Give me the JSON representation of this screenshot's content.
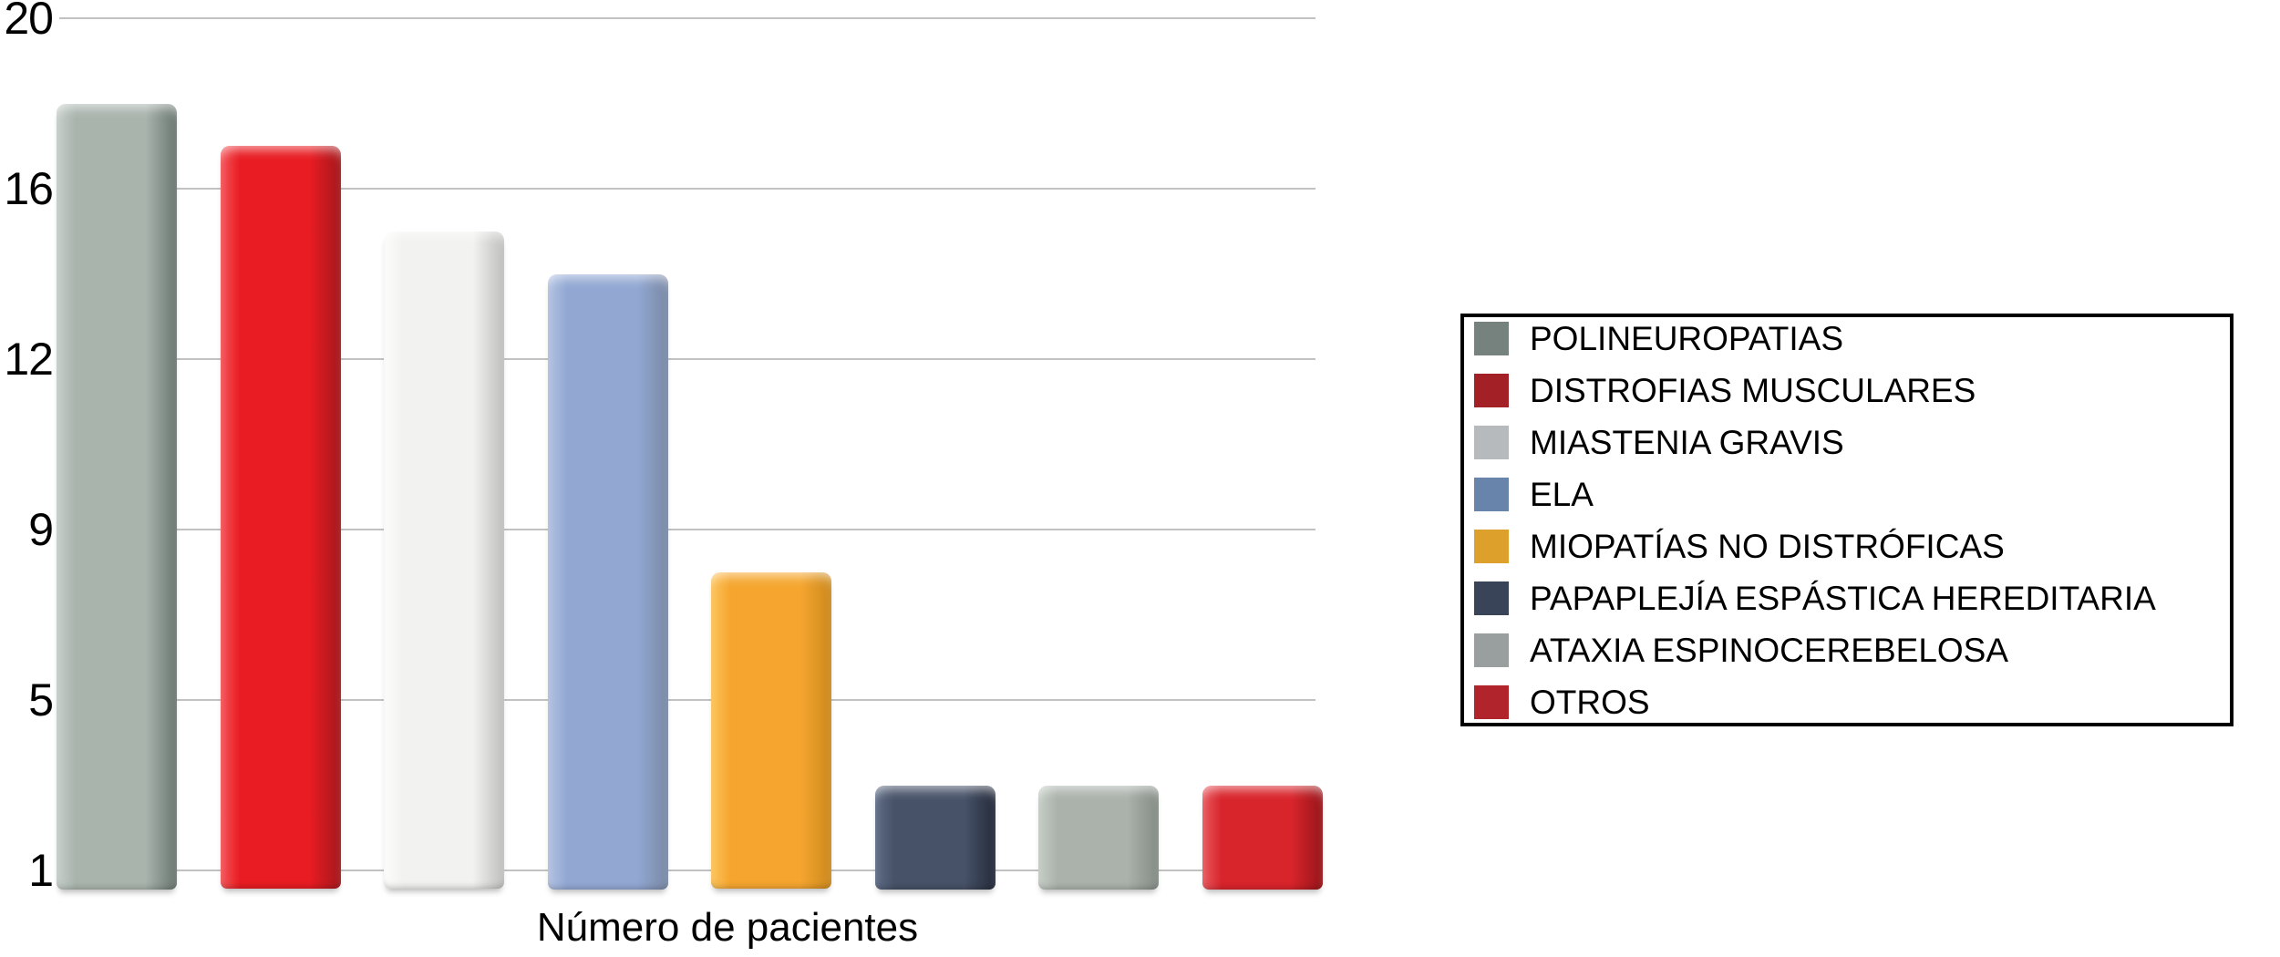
{
  "chart_data": {
    "type": "bar",
    "title": "",
    "xlabel": "Número de pacientes",
    "ylabel": "",
    "categories": [
      "POLINEUROPATIAS",
      "DISTROFIAS MUSCULARES",
      "MIASTENIA GRAVIS",
      "ELA",
      "MIOPATÍAS NO DISTRÓFICAS",
      "PAPAPLEJÍA ESPÁSTICA HEREDITARIA",
      "ATAXIA ESPINOCEREBELOSA",
      "OTROS"
    ],
    "values": [
      18,
      17,
      15,
      14,
      8,
      3,
      3,
      3
    ],
    "y_ticks": [
      20,
      16,
      12,
      9,
      5,
      1
    ],
    "ylim": [
      1,
      20
    ],
    "grid": true,
    "legend_position": "right",
    "bar_colors": [
      "#a9b4ad",
      "#e81c22",
      "#f2f2f0",
      "#92a8d3",
      "#f6a62f",
      "#475268",
      "#aab2ab",
      "#d8242b"
    ],
    "bar_colors_light": [
      "#c6cfc9",
      "#f4575c",
      "#fcfcfb",
      "#b2c2e1",
      "#fcc45c",
      "#5e6c86",
      "#c6cdc6",
      "#e8595e"
    ],
    "bar_colors_dark": [
      "#6e7a74",
      "#a8181d",
      "#c2c2c0",
      "#7b8ba8",
      "#cf8b1e",
      "#272e3e",
      "#868e87",
      "#9c161b"
    ],
    "legend_swatch_colors": [
      "#75827d",
      "#a32026",
      "#b7babc",
      "#6884aa",
      "#dda02b",
      "#3a4459",
      "#999f9f",
      "#b2242c"
    ]
  },
  "colors": {
    "background": "#ffffff",
    "gridline": "#c2c2c2",
    "axis_text": "#000000",
    "legend_border": "#000000"
  }
}
